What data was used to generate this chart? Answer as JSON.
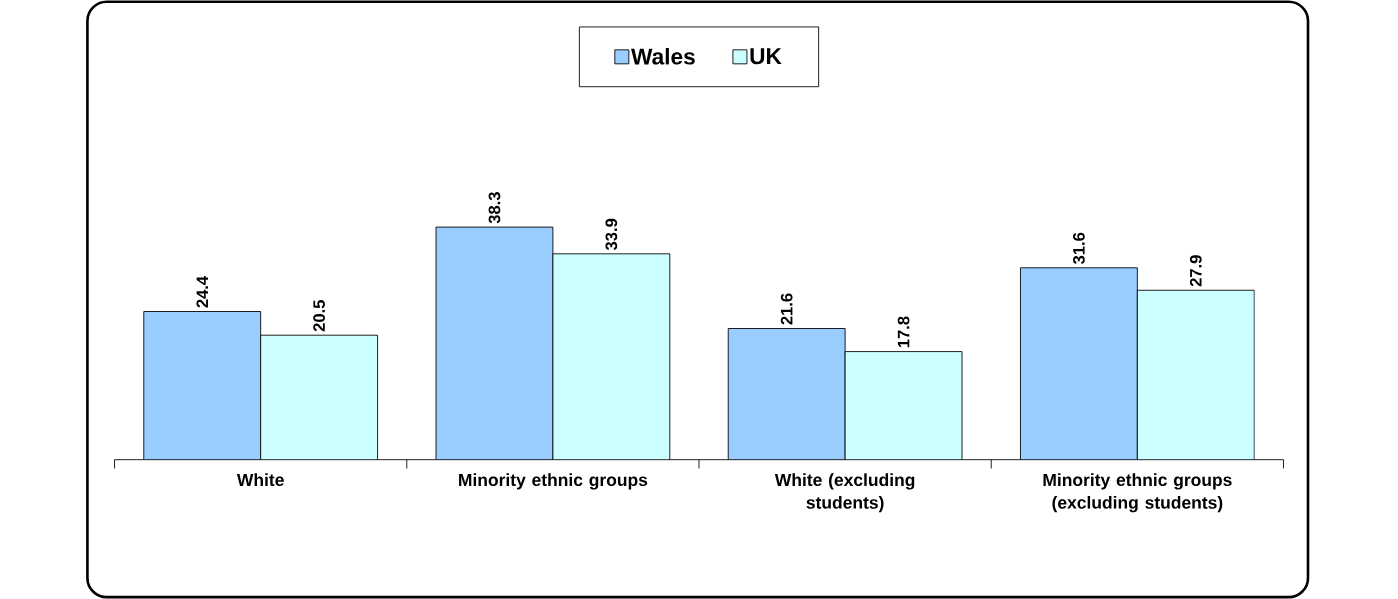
{
  "chart_data": {
    "type": "bar",
    "categories": [
      "White",
      "Minority ethnic groups",
      "White (excluding students)",
      "Minority ethnic groups (excluding students)"
    ],
    "series": [
      {
        "name": "Wales",
        "color": "#99ccff",
        "values": [
          24.4,
          38.3,
          21.6,
          31.6
        ]
      },
      {
        "name": "UK",
        "color": "#ccffff",
        "values": [
          20.5,
          33.9,
          17.8,
          27.9
        ]
      }
    ],
    "data_labels": true,
    "legend": "top"
  }
}
